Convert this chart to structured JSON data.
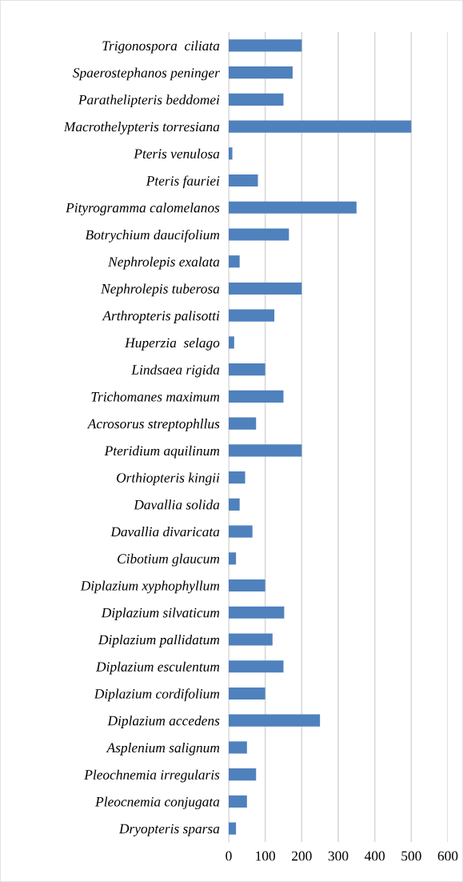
{
  "chart_data": {
    "type": "bar",
    "orientation": "horizontal",
    "categories": [
      "Trigonospora  ciliata",
      "Spaerostephanos peninger",
      "Parathelipteris beddomei",
      "Macrothelypteris torresiana",
      "Pteris venulosa",
      "Pteris fauriei",
      "Pityrogramma calomelanos",
      "Botrychium daucifolium",
      "Nephrolepis exalata",
      "Nephrolepis tuberosa",
      "Arthropteris palisotti",
      "Huperzia  selago",
      "Lindsaea rigida",
      "Trichomanes maximum",
      "Acrosorus streptophllus",
      "Pteridium aquilinum",
      "Orthiopteris kingii",
      "Davallia solida",
      "Davallia divaricata",
      "Cibotium glaucum",
      "Diplazium xyphophyllum",
      "Diplazium silvaticum",
      "Diplazium pallidatum",
      "Diplazium esculentum",
      "Diplazium cordifolium",
      "Diplazium accedens",
      "Asplenium salignum",
      "Pleochnemia irregularis",
      "Pleocnemia conjugata",
      "Dryopteris sparsa"
    ],
    "values": [
      200,
      175,
      150,
      500,
      10,
      80,
      350,
      165,
      30,
      200,
      125,
      15,
      100,
      150,
      75,
      200,
      45,
      30,
      65,
      20,
      100,
      152,
      120,
      150,
      100,
      250,
      50,
      75,
      50,
      20
    ],
    "color": "#4f81bd",
    "xlim": [
      0,
      600
    ],
    "xticks": [
      0,
      100,
      200,
      300,
      400,
      500,
      600
    ],
    "grid": "x"
  }
}
